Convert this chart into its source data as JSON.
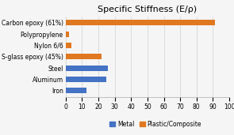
{
  "title": "Specific Stiffness (E/ρ)",
  "categories": [
    "Carbon epoxy (61%)",
    "Polypropylene",
    "Nylon 6/6",
    "S-glass epoxy (45%)",
    "Steel",
    "Aluminum",
    "Iron"
  ],
  "values": [
    91,
    2,
    3.5,
    22,
    26,
    25,
    13
  ],
  "colors": [
    "#e07820",
    "#e07820",
    "#e07820",
    "#e07820",
    "#4472c4",
    "#4472c4",
    "#4472c4"
  ],
  "xlim": [
    0,
    100
  ],
  "xticks": [
    0,
    10,
    20,
    30,
    40,
    50,
    60,
    70,
    80,
    90,
    100
  ],
  "legend_metal_color": "#4472c4",
  "legend_plastic_color": "#e07820",
  "legend_metal_label": "Metal",
  "legend_plastic_label": "Plastic/Composite",
  "background_color": "#f5f5f5",
  "title_fontsize": 8,
  "label_fontsize": 5.5,
  "tick_fontsize": 5.5,
  "legend_fontsize": 5.5,
  "bar_height": 0.5
}
